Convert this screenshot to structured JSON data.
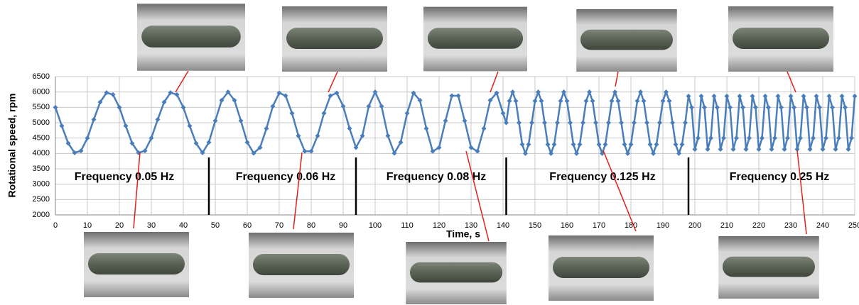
{
  "chart_data": {
    "type": "line",
    "x_label": "Time, s",
    "y_label": "Rotational speed, rpm",
    "annotations": [
      "Frequency 0.05 Hz",
      "Frequency 0.06 Hz",
      "Frequency 0.08 Hz",
      "Frequency 0.125 Hz",
      "Frequency 0.25 Hz"
    ],
    "xlim": [
      0,
      250
    ],
    "ylim": [
      2000,
      6500
    ],
    "xticks": [
      0,
      10,
      20,
      30,
      40,
      50,
      60,
      70,
      80,
      90,
      100,
      110,
      120,
      130,
      140,
      150,
      160,
      170,
      180,
      190,
      200,
      210,
      220,
      230,
      240,
      250
    ],
    "yticks": [
      2000,
      2500,
      3000,
      3500,
      4000,
      4500,
      5000,
      5500,
      6000,
      6500
    ],
    "grid": true,
    "series": [
      {
        "name": "Rotational speed",
        "color": "#4a7ebb",
        "x": [
          0,
          2,
          4,
          6,
          8,
          10,
          12,
          14,
          16,
          18,
          20,
          22,
          24,
          26,
          28,
          30,
          32,
          34,
          36,
          38,
          40,
          42,
          44,
          46,
          48,
          50,
          52,
          54,
          56,
          58,
          60,
          62,
          64,
          66,
          68,
          70,
          72,
          74,
          76,
          78,
          80,
          82,
          84,
          86,
          88,
          90,
          92,
          94,
          96,
          98,
          100,
          102,
          104,
          106,
          108,
          110,
          112,
          114,
          116,
          118,
          120,
          122,
          124,
          126,
          128,
          130,
          132,
          134,
          136,
          138,
          140,
          141,
          142,
          143,
          144,
          145,
          146,
          147,
          148,
          149,
          150,
          151,
          152,
          153,
          154,
          155,
          156,
          157,
          158,
          159,
          160,
          161,
          162,
          163,
          164,
          165,
          166,
          167,
          168,
          169,
          170,
          171,
          172,
          173,
          174,
          175,
          176,
          177,
          178,
          179,
          180,
          181,
          182,
          183,
          184,
          185,
          186,
          187,
          188,
          189,
          190,
          191,
          192,
          193,
          194,
          195,
          196,
          197,
          198,
          199,
          200,
          201,
          202,
          203,
          204,
          205,
          206,
          207,
          208,
          209,
          210,
          211,
          212,
          213,
          214,
          215,
          216,
          217,
          218,
          219,
          220,
          221,
          222,
          223,
          224,
          225,
          226,
          227,
          228,
          229,
          230,
          231,
          232,
          233,
          234,
          235,
          236,
          237,
          238,
          239,
          240,
          241,
          242,
          243,
          244,
          245,
          246,
          247,
          248,
          249,
          250
        ],
        "values": [
          5500,
          4895,
          4331,
          4022,
          4086,
          4500,
          5105,
          5669,
          5978,
          5914,
          5500,
          4895,
          4331,
          4022,
          4086,
          4500,
          5105,
          5669,
          5978,
          5914,
          5500,
          4895,
          4331,
          4022,
          4363,
          5063,
          5729,
          6000,
          5729,
          5063,
          4363,
          4008,
          4191,
          4813,
          5536,
          5969,
          5876,
          5309,
          4574,
          4070,
          4070,
          4574,
          5309,
          5876,
          5969,
          5536,
          4813,
          4191,
          4574,
          5536,
          6000,
          5536,
          4574,
          4008,
          4363,
          5309,
          5969,
          5729,
          4813,
          4070,
          4191,
          5063,
          5876,
          5876,
          5063,
          4191,
          4070,
          4813,
          5729,
          5969,
          5309,
          5000,
          5707,
          6000,
          5707,
          5000,
          4293,
          4000,
          4293,
          5000,
          5707,
          6000,
          5707,
          5000,
          4293,
          4000,
          4293,
          5000,
          5707,
          6000,
          5707,
          5000,
          4293,
          4000,
          4293,
          5000,
          5707,
          6000,
          5707,
          5000,
          4293,
          4000,
          4293,
          5000,
          5707,
          6000,
          5707,
          5000,
          4293,
          4000,
          4293,
          5000,
          5707,
          6000,
          5707,
          5000,
          4293,
          4000,
          4293,
          5000,
          5707,
          6000,
          5707,
          5000,
          4293,
          4000,
          4293,
          5000,
          5866,
          5500,
          4134,
          4500,
          5866,
          5500,
          4134,
          4500,
          5866,
          5500,
          4134,
          4500,
          5866,
          5500,
          4134,
          4500,
          5866,
          5500,
          4134,
          4500,
          5866,
          5500,
          4134,
          4500,
          5866,
          5500,
          4134,
          4500,
          5866,
          5500,
          4134,
          4500,
          5866,
          5500,
          4134,
          4500,
          5866,
          5500,
          4134,
          4500,
          5866,
          5500,
          4134,
          4500,
          5866,
          5500,
          4134,
          4500,
          5866,
          5500,
          4134,
          4500,
          5866
        ]
      }
    ]
  }
}
